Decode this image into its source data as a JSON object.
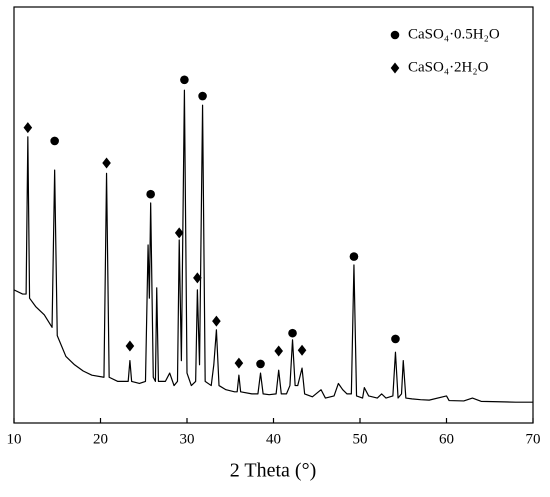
{
  "chart_data": {
    "type": "line",
    "xlabel": "2 Theta (°)",
    "xlim": [
      10,
      70
    ],
    "ylim": [
      0,
      100
    ],
    "xticks": [
      10,
      20,
      30,
      40,
      50,
      60,
      70
    ],
    "color": "#000000",
    "series": [
      {
        "kind": "line",
        "x": [
          10,
          11,
          11.4,
          11.6,
          11.8,
          12.5,
          13.5,
          14.4,
          14.7,
          15.0,
          16,
          17,
          18,
          19,
          20.4,
          20.7,
          21.0,
          22,
          23.2,
          23.4,
          23.6,
          24.5,
          25.2,
          25.5,
          25.65,
          25.8,
          26.1,
          26.35,
          26.5,
          26.7,
          27.5,
          28,
          28.5,
          28.9,
          29.1,
          29.35,
          29.7,
          30.0,
          30.5,
          31.0,
          31.2,
          31.45,
          31.8,
          32.1,
          32.8,
          33.1,
          33.4,
          33.7,
          34.5,
          35.5,
          35.8,
          36.0,
          36.2,
          37.5,
          38.2,
          38.5,
          38.8,
          39.5,
          40.3,
          40.6,
          40.9,
          41.5,
          41.9,
          42.2,
          42.5,
          42.8,
          43.3,
          43.6,
          44.5,
          45.5,
          46,
          47,
          47.5,
          48,
          48.5,
          49.0,
          49.3,
          49.6,
          50.3,
          50.5,
          51,
          52,
          52.5,
          53,
          53.8,
          54.1,
          54.4,
          54.8,
          55.0,
          55.3,
          56,
          57,
          58,
          60,
          60.3,
          62,
          63,
          64,
          66,
          68,
          70
        ],
        "values": [
          32,
          31,
          31,
          68.8,
          30,
          28,
          26,
          23,
          60.8,
          21,
          16,
          14,
          12.5,
          11.5,
          11,
          60,
          11,
          10,
          10,
          15,
          10,
          9.5,
          10,
          42.8,
          30,
          52.9,
          11,
          10,
          32.5,
          10,
          10,
          12,
          9,
          10,
          44,
          15,
          80,
          12,
          9,
          10,
          32,
          14,
          76.4,
          10,
          9,
          14,
          22.4,
          9,
          8,
          7.5,
          7.5,
          11.5,
          7.5,
          7,
          7,
          12,
          7,
          6.8,
          7,
          12.7,
          7,
          7,
          9,
          20,
          9,
          9,
          13.2,
          7,
          6.3,
          8,
          6,
          6.5,
          9.5,
          8,
          7,
          7,
          38,
          6.5,
          6,
          8.5,
          6.5,
          6,
          7,
          6,
          6.5,
          17,
          6,
          7,
          15,
          6,
          5.8,
          5.6,
          5.5,
          6.5,
          5.4,
          5.3,
          6,
          5.2,
          5.1,
          5,
          5
        ]
      },
      {
        "kind": "marker",
        "marker": "circle",
        "name": "CaSO₄·0.5H₂O",
        "x": [
          14.7,
          25.8,
          29.7,
          31.8,
          38.5,
          42.2,
          49.3,
          54.1
        ],
        "values": [
          67.8,
          55,
          82.5,
          78.6,
          14.2,
          21.6,
          40,
          20.2
        ]
      },
      {
        "kind": "marker",
        "marker": "diamond",
        "name": "CaSO₄·2H₂O",
        "x": [
          11.6,
          20.7,
          23.4,
          29.1,
          31.2,
          33.4,
          36.0,
          40.6,
          43.3
        ],
        "values": [
          71,
          62.5,
          18.5,
          45.7,
          34.9,
          24.5,
          14.4,
          17.3,
          17.5
        ]
      }
    ]
  }
}
